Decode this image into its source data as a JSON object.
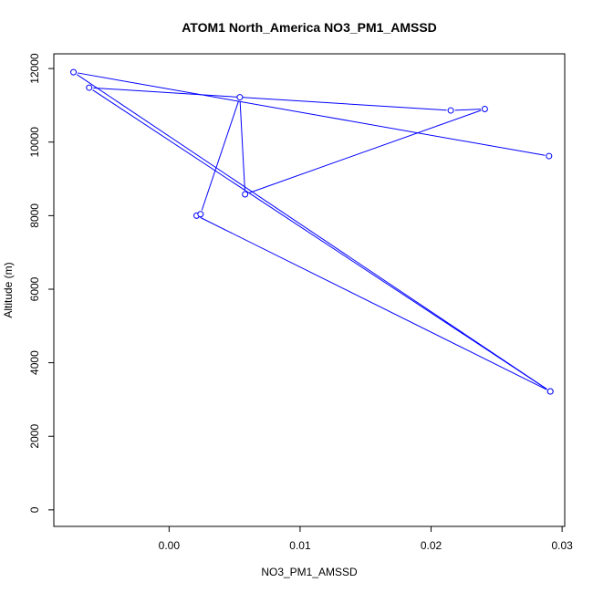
{
  "chart_data": {
    "type": "scatter",
    "title": "ATOM1 North_America NO3_PM1_AMSSD",
    "xlabel": "NO3_PM1_AMSSD",
    "ylabel": "Altitude (m)",
    "xlim": [
      -0.0088,
      0.0302
    ],
    "ylim": [
      -450,
      12400
    ],
    "x_ticks": [
      0.0,
      0.01,
      0.02,
      0.03
    ],
    "x_tick_labels": [
      "0.00",
      "0.01",
      "0.02",
      "0.03"
    ],
    "y_ticks": [
      0,
      2000,
      4000,
      6000,
      8000,
      10000,
      12000
    ],
    "y_tick_labels": [
      "0",
      "2000",
      "4000",
      "6000",
      "8000",
      "10000",
      "12000"
    ],
    "grid": false,
    "legend": "none",
    "line_color": "#0000ff",
    "series": [
      {
        "x": [
          0.0291,
          0.0021,
          0.0024,
          0.0054,
          0.0058,
          0.0241,
          0.0215,
          -0.0061,
          0.0291,
          -0.0073,
          0.029
        ],
        "y": [
          3220,
          8000,
          8040,
          11220,
          8580,
          10900,
          10860,
          11480,
          3220,
          11900,
          9620
        ]
      }
    ]
  }
}
